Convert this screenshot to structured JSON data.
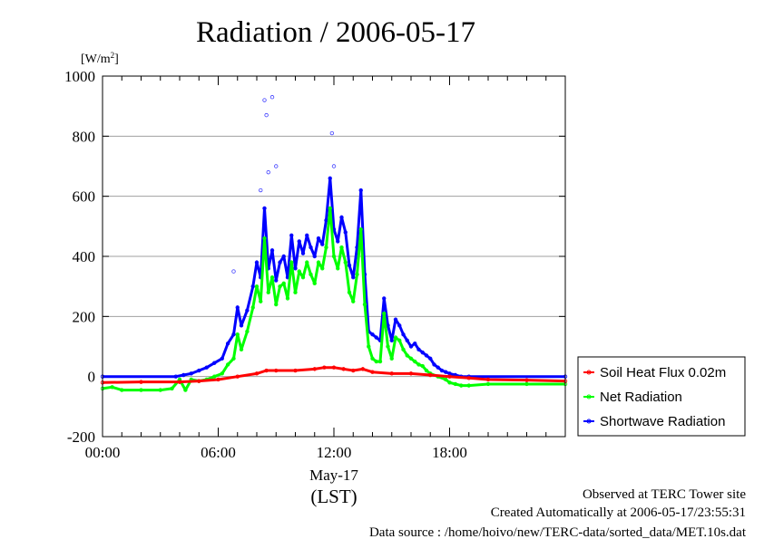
{
  "chart_data": {
    "type": "line",
    "title": "Radiation / 2006-05-17",
    "ylabel": "[W/m",
    "ylabel_sup": "2",
    "ylabel_close": "]",
    "xlabel_date": "May-17",
    "xlabel_unit": "(LST)",
    "ylim": [
      -200,
      1000
    ],
    "xlim": [
      0,
      24
    ],
    "yticks": [
      -200,
      0,
      200,
      400,
      600,
      800,
      1000
    ],
    "ytick_labels": [
      "-200",
      "0",
      "200",
      "400",
      "600",
      "800",
      "1000"
    ],
    "xticks": [
      0,
      6,
      12,
      18
    ],
    "xtick_labels": [
      "00:00",
      "06:00",
      "12:00",
      "18:00"
    ],
    "grid": "horizontal",
    "legend_position": "right, outside plot",
    "series": [
      {
        "name": "Shortwave Radiation",
        "color": "#0000ff",
        "x": [
          0,
          3.8,
          4.2,
          4.6,
          5.0,
          5.4,
          5.8,
          6.2,
          6.5,
          6.8,
          7.0,
          7.2,
          7.5,
          7.8,
          8.0,
          8.2,
          8.4,
          8.6,
          8.8,
          9.0,
          9.2,
          9.4,
          9.6,
          9.8,
          10.0,
          10.2,
          10.4,
          10.6,
          10.8,
          11.0,
          11.2,
          11.4,
          11.6,
          11.8,
          12.0,
          12.2,
          12.4,
          12.6,
          12.8,
          13.0,
          13.2,
          13.4,
          13.6,
          13.8,
          14.0,
          14.2,
          14.4,
          14.6,
          14.8,
          15.0,
          15.2,
          15.4,
          15.6,
          15.8,
          16.0,
          16.2,
          16.4,
          16.6,
          16.8,
          17.0,
          17.2,
          17.4,
          17.6,
          17.8,
          18.0,
          18.3,
          18.6,
          19.0,
          24
        ],
        "y": [
          0,
          0,
          5,
          10,
          20,
          30,
          45,
          60,
          110,
          140,
          230,
          170,
          220,
          300,
          380,
          330,
          560,
          360,
          420,
          320,
          380,
          400,
          330,
          470,
          360,
          450,
          410,
          470,
          430,
          400,
          460,
          440,
          520,
          660,
          490,
          450,
          530,
          480,
          370,
          330,
          430,
          620,
          340,
          150,
          140,
          130,
          120,
          260,
          170,
          120,
          190,
          170,
          140,
          120,
          100,
          110,
          90,
          80,
          70,
          60,
          40,
          30,
          20,
          15,
          10,
          5,
          0,
          0,
          0
        ]
      },
      {
        "name": "Net Radiation",
        "color": "#00ff00",
        "x": [
          0,
          0.5,
          1.0,
          2.0,
          3.0,
          3.6,
          4.0,
          4.3,
          4.6,
          5.0,
          5.4,
          5.8,
          6.2,
          6.5,
          6.8,
          7.0,
          7.2,
          7.5,
          7.8,
          8.0,
          8.2,
          8.4,
          8.6,
          8.8,
          9.0,
          9.2,
          9.4,
          9.6,
          9.8,
          10.0,
          10.2,
          10.4,
          10.6,
          10.8,
          11.0,
          11.2,
          11.4,
          11.6,
          11.8,
          12.0,
          12.2,
          12.4,
          12.6,
          12.8,
          13.0,
          13.2,
          13.4,
          13.6,
          13.8,
          14.0,
          14.2,
          14.4,
          14.6,
          14.8,
          15.0,
          15.2,
          15.4,
          15.6,
          15.8,
          16.0,
          16.2,
          16.4,
          16.6,
          16.8,
          17.0,
          17.4,
          17.8,
          18.0,
          18.3,
          18.6,
          19.0,
          20.0,
          22.0,
          24
        ],
        "y": [
          -40,
          -35,
          -45,
          -45,
          -45,
          -40,
          -10,
          -45,
          -10,
          -15,
          -10,
          0,
          10,
          40,
          60,
          140,
          90,
          150,
          230,
          300,
          250,
          460,
          280,
          330,
          240,
          300,
          310,
          260,
          380,
          280,
          350,
          330,
          380,
          340,
          310,
          380,
          360,
          430,
          560,
          400,
          360,
          430,
          380,
          280,
          250,
          340,
          490,
          240,
          100,
          60,
          50,
          50,
          210,
          100,
          60,
          130,
          120,
          90,
          70,
          60,
          50,
          40,
          35,
          20,
          10,
          0,
          -10,
          -20,
          -25,
          -30,
          -30,
          -25,
          -25,
          -25
        ]
      },
      {
        "name": "Soil Heat Flux 0.02m",
        "color": "#ff0000",
        "x": [
          0,
          2,
          4,
          5,
          6,
          7,
          8,
          8.5,
          9,
          10,
          11,
          11.5,
          12,
          12.5,
          13,
          13.5,
          14,
          15,
          16,
          17,
          18,
          19,
          20,
          22,
          24
        ],
        "y": [
          -20,
          -18,
          -18,
          -15,
          -10,
          0,
          10,
          20,
          20,
          20,
          25,
          30,
          30,
          25,
          20,
          25,
          15,
          10,
          10,
          5,
          0,
          -5,
          -10,
          -12,
          -15
        ]
      }
    ],
    "scatter_peaks": [
      {
        "x": 8.4,
        "y": 920
      },
      {
        "x": 8.5,
        "y": 870
      },
      {
        "x": 8.8,
        "y": 930
      },
      {
        "x": 9.0,
        "y": 700
      },
      {
        "x": 11.9,
        "y": 810
      },
      {
        "x": 12.0,
        "y": 700
      },
      {
        "x": 8.2,
        "y": 620
      },
      {
        "x": 8.6,
        "y": 680
      },
      {
        "x": 6.8,
        "y": 350
      }
    ],
    "footer": [
      "Observed at TERC Tower site",
      "Created Automatically at 2006-05-17/23:55:31",
      "Data source : /home/hoivo/new/TERC-data/sorted_data/MET.10s.dat"
    ]
  }
}
